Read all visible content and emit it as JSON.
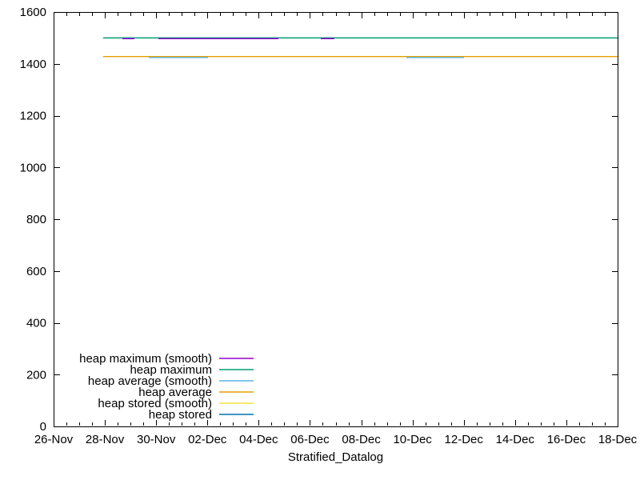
{
  "window": {
    "background": "#ffffff",
    "foreground": "#000000"
  },
  "chart_data": {
    "type": "line",
    "title": "",
    "xlabel": "Stratified_Datalog",
    "ylabel": "",
    "grid": false,
    "x_axis": {
      "unit": "date",
      "range_days": [
        0,
        22
      ],
      "tick_labels": [
        "26-Nov",
        "28-Nov",
        "30-Nov",
        "02-Dec",
        "04-Dec",
        "06-Dec",
        "08-Dec",
        "10-Dec",
        "12-Dec",
        "14-Dec",
        "16-Dec",
        "18-Dec"
      ],
      "major_tick_every_days": 2,
      "minor_ticks_between_majors": 3
    },
    "y_axis": {
      "range": [
        0,
        1600
      ],
      "tick_step": 200,
      "tick_labels": [
        "0",
        "200",
        "400",
        "600",
        "800",
        "1000",
        "1200",
        "1400",
        "1600"
      ]
    },
    "legend": {
      "position": "inside-bottom-left",
      "box": false
    },
    "series": [
      {
        "name": "heap maximum (smooth)",
        "color": "#9400d3",
        "value": 1497,
        "visible": true,
        "segments_days": [
          [
            2.68,
            3.15
          ],
          [
            4.09,
            8.77
          ],
          [
            10.42,
            10.95
          ]
        ]
      },
      {
        "name": "heap maximum",
        "color": "#009e73",
        "value": 1500,
        "visible": true,
        "span_days": [
          1.93,
          22
        ]
      },
      {
        "name": "heap average (smooth)",
        "color": "#56b4e9",
        "value": 1424,
        "visible": true,
        "segments_days": [
          [
            3.71,
            6.02
          ],
          [
            13.76,
            16.01
          ]
        ]
      },
      {
        "name": "heap average",
        "color": "#e69f00",
        "value": 1428,
        "visible": true,
        "span_days": [
          1.93,
          22
        ]
      },
      {
        "name": "heap stored (smooth)",
        "color": "#f0e442",
        "value": 1428,
        "visible": false
      },
      {
        "name": "heap stored",
        "color": "#0072b2",
        "value": 1428,
        "visible": false
      }
    ]
  }
}
